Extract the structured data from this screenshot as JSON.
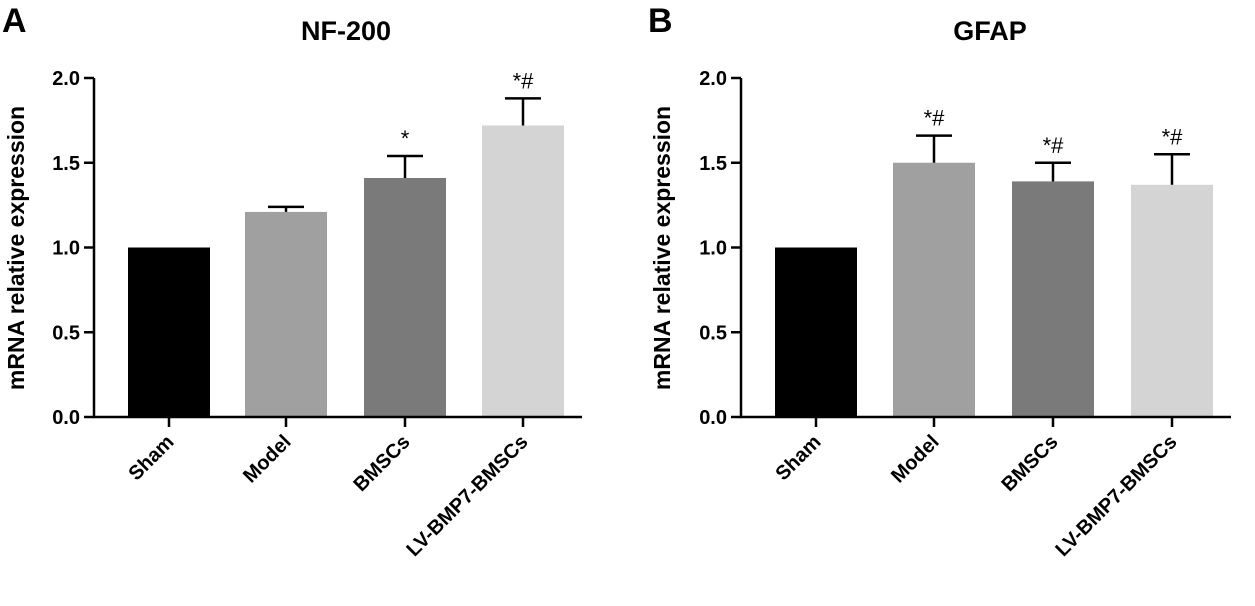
{
  "chart_data": [
    {
      "panel": "A",
      "type": "bar",
      "title": "NF-200",
      "ylabel": "mRNA relative expression",
      "xlabel": "",
      "ylim": [
        0,
        2.0
      ],
      "yticks": [
        0.0,
        0.5,
        1.0,
        1.5,
        2.0
      ],
      "ytick_labels": [
        "0.0",
        "0.5",
        "1.0",
        "1.5",
        "2.0"
      ],
      "categories": [
        "Sham",
        "Model",
        "BMSCs",
        "LV-BMP7-BMSCs"
      ],
      "values": [
        1.0,
        1.21,
        1.41,
        1.72
      ],
      "errors": [
        0.0,
        0.03,
        0.13,
        0.16
      ],
      "annotations": [
        "",
        "",
        "*",
        "*#"
      ],
      "colors": [
        "#000000",
        "#a0a0a0",
        "#7a7a7a",
        "#d4d4d4"
      ]
    },
    {
      "panel": "B",
      "type": "bar",
      "title": "GFAP",
      "ylabel": "mRNA relative expression",
      "xlabel": "",
      "ylim": [
        0,
        2.0
      ],
      "yticks": [
        0.0,
        0.5,
        1.0,
        1.5,
        2.0
      ],
      "ytick_labels": [
        "0.0",
        "0.5",
        "1.0",
        "1.5",
        "2.0"
      ],
      "categories": [
        "Sham",
        "Model",
        "BMSCs",
        "LV-BMP7-BMSCs"
      ],
      "values": [
        1.0,
        1.5,
        1.39,
        1.37
      ],
      "errors": [
        0.0,
        0.16,
        0.11,
        0.18
      ],
      "annotations": [
        "",
        "*#",
        "*#",
        "*#"
      ],
      "colors": [
        "#000000",
        "#a0a0a0",
        "#7a7a7a",
        "#d4d4d4"
      ]
    }
  ]
}
